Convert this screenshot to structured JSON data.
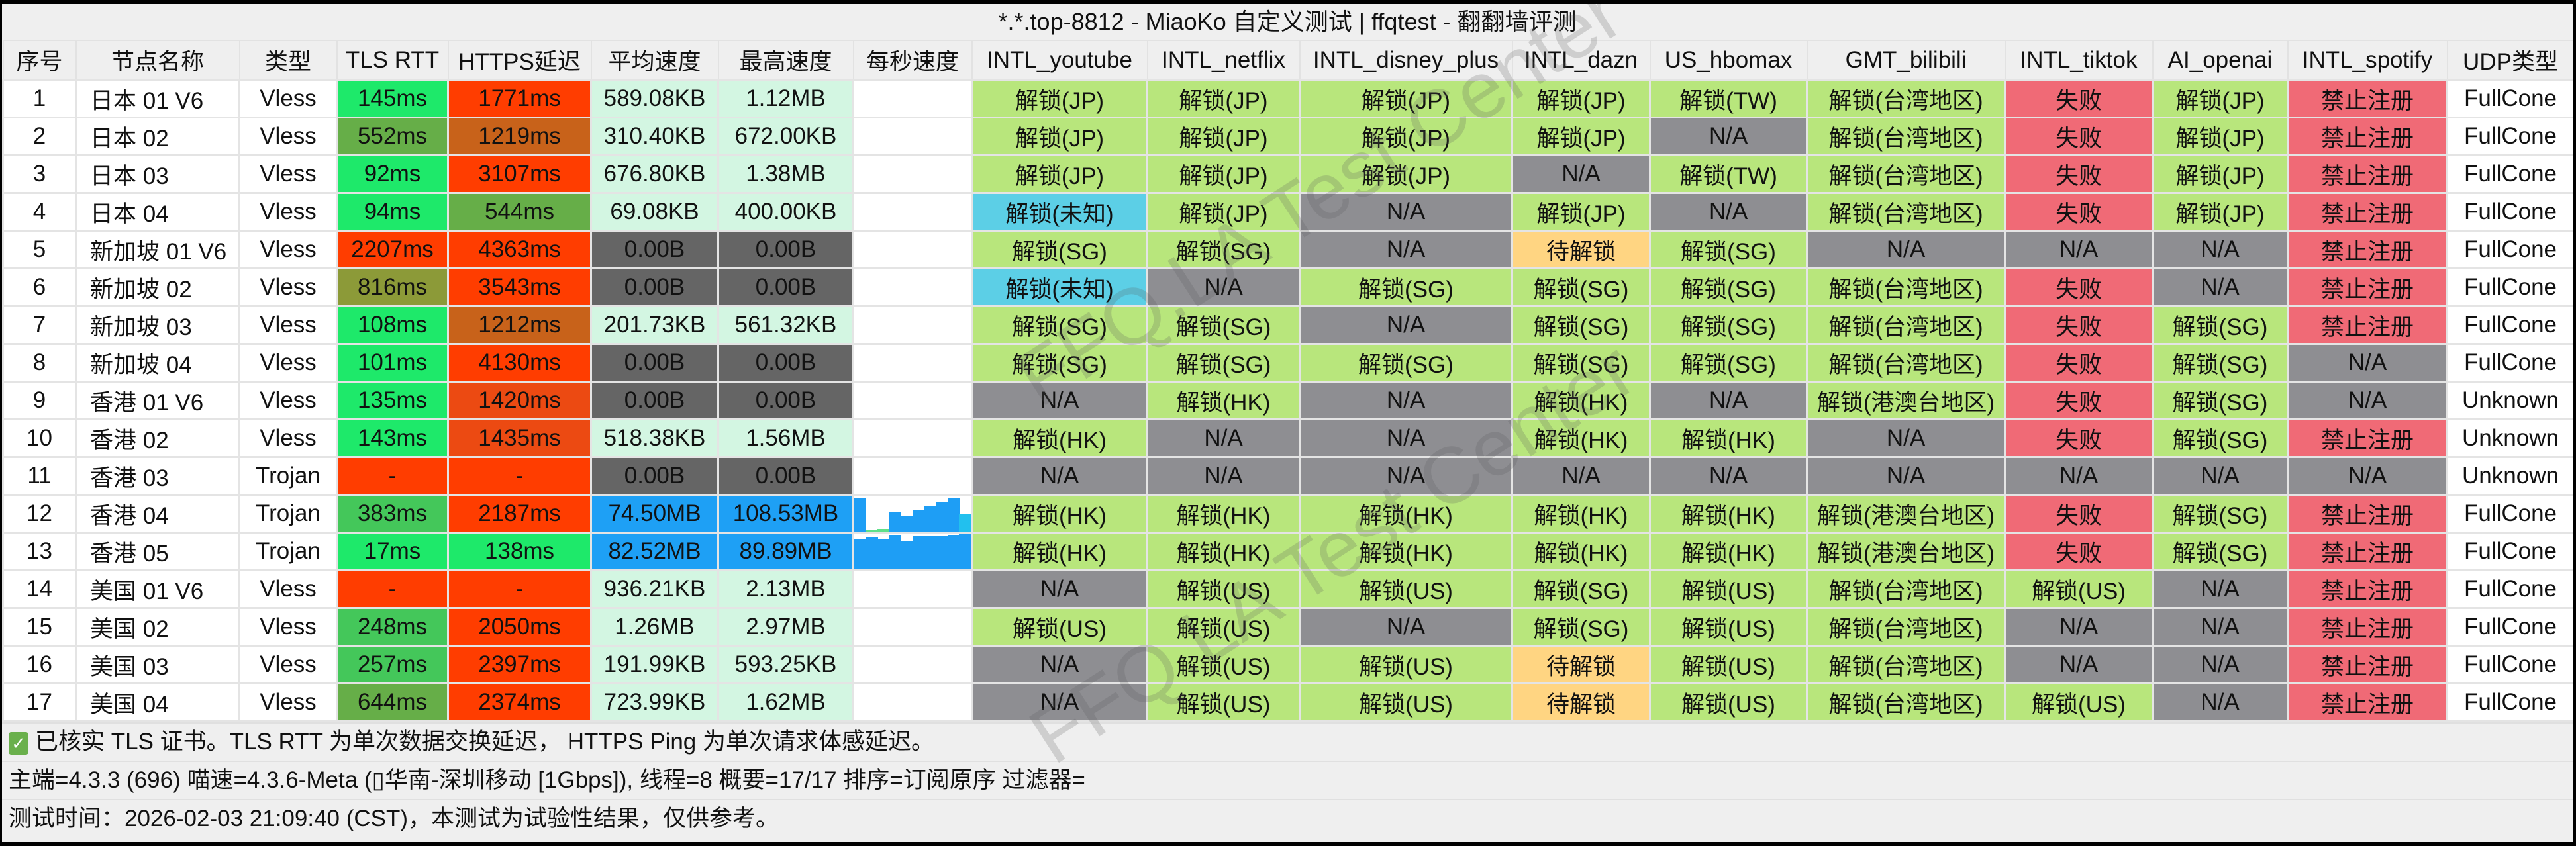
{
  "title": "*.*.top-8812 - MiaoKo 自定义测试 | ffqtest - 翻翻墙评测",
  "watermark": "FFQ.LA Test Center",
  "colors": {
    "w": "#ffffff",
    "g1": "#1ee96a",
    "g2": "#66ae48",
    "g3": "#44c75a",
    "ol": "#8c9a38",
    "rd": "#ff3d00",
    "br": "#c8621a",
    "r2": "#ec4a12",
    "mint": "#d3f6e2",
    "dg": "#656565",
    "bl": "#1ea0f5",
    "ok": "#b8e67c",
    "na": "#8e8e92",
    "fail": "#f06a76",
    "cy": "#5ccfe6",
    "wait": "#ffd582",
    "spark": "#1e9ef5",
    "spark_alt": "#22c0ee",
    "spark_low": "#5fe08a"
  },
  "columns": [
    "序号",
    "节点名称",
    "类型",
    "TLS RTT",
    "HTTPS延迟",
    "平均速度",
    "最高速度",
    "每秒速度",
    "INTL_youtube",
    "INTL_netflix",
    "INTL_disney_plus",
    "INTL_dazn",
    "US_hbomax",
    "GMT_bilibili",
    "INTL_tiktok",
    "AI_openai",
    "INTL_spotify",
    "UDP类型"
  ],
  "rows": [
    {
      "id": "1",
      "name": "日本 01 V6",
      "type": "Vless",
      "tls": [
        "145ms",
        "g1"
      ],
      "https": [
        "1771ms",
        "rd"
      ],
      "avg": [
        "589.08KB",
        "mint"
      ],
      "max": [
        "1.12MB",
        "mint"
      ],
      "spark": [],
      "svc": [
        [
          "解锁(JP)",
          "ok"
        ],
        [
          "解锁(JP)",
          "ok"
        ],
        [
          "解锁(JP)",
          "ok"
        ],
        [
          "解锁(JP)",
          "ok"
        ],
        [
          "解锁(TW)",
          "ok"
        ],
        [
          "解锁(台湾地区)",
          "ok"
        ],
        [
          "失败",
          "fail"
        ],
        [
          "解锁(JP)",
          "ok"
        ],
        [
          "禁止注册",
          "fail"
        ]
      ],
      "udp": "FullCone"
    },
    {
      "id": "2",
      "name": "日本 02",
      "type": "Vless",
      "tls": [
        "552ms",
        "g2"
      ],
      "https": [
        "1219ms",
        "br"
      ],
      "avg": [
        "310.40KB",
        "mint"
      ],
      "max": [
        "672.00KB",
        "mint"
      ],
      "spark": [],
      "svc": [
        [
          "解锁(JP)",
          "ok"
        ],
        [
          "解锁(JP)",
          "ok"
        ],
        [
          "解锁(JP)",
          "ok"
        ],
        [
          "解锁(JP)",
          "ok"
        ],
        [
          "N/A",
          "na"
        ],
        [
          "解锁(台湾地区)",
          "ok"
        ],
        [
          "失败",
          "fail"
        ],
        [
          "解锁(JP)",
          "ok"
        ],
        [
          "禁止注册",
          "fail"
        ]
      ],
      "udp": "FullCone"
    },
    {
      "id": "3",
      "name": "日本 03",
      "type": "Vless",
      "tls": [
        "92ms",
        "g1"
      ],
      "https": [
        "3107ms",
        "rd"
      ],
      "avg": [
        "676.80KB",
        "mint"
      ],
      "max": [
        "1.38MB",
        "mint"
      ],
      "spark": [],
      "svc": [
        [
          "解锁(JP)",
          "ok"
        ],
        [
          "解锁(JP)",
          "ok"
        ],
        [
          "解锁(JP)",
          "ok"
        ],
        [
          "N/A",
          "na"
        ],
        [
          "解锁(TW)",
          "ok"
        ],
        [
          "解锁(台湾地区)",
          "ok"
        ],
        [
          "失败",
          "fail"
        ],
        [
          "解锁(JP)",
          "ok"
        ],
        [
          "禁止注册",
          "fail"
        ]
      ],
      "udp": "FullCone"
    },
    {
      "id": "4",
      "name": "日本 04",
      "type": "Vless",
      "tls": [
        "94ms",
        "g1"
      ],
      "https": [
        "544ms",
        "g2"
      ],
      "avg": [
        "69.08KB",
        "mint"
      ],
      "max": [
        "400.00KB",
        "mint"
      ],
      "spark": [],
      "svc": [
        [
          "解锁(未知)",
          "cy"
        ],
        [
          "解锁(JP)",
          "ok"
        ],
        [
          "N/A",
          "na"
        ],
        [
          "解锁(JP)",
          "ok"
        ],
        [
          "N/A",
          "na"
        ],
        [
          "解锁(台湾地区)",
          "ok"
        ],
        [
          "失败",
          "fail"
        ],
        [
          "解锁(JP)",
          "ok"
        ],
        [
          "禁止注册",
          "fail"
        ]
      ],
      "udp": "FullCone"
    },
    {
      "id": "5",
      "name": "新加坡 01 V6",
      "type": "Vless",
      "tls": [
        "2207ms",
        "rd"
      ],
      "https": [
        "4363ms",
        "rd"
      ],
      "avg": [
        "0.00B",
        "dg"
      ],
      "max": [
        "0.00B",
        "dg"
      ],
      "spark": [],
      "svc": [
        [
          "解锁(SG)",
          "ok"
        ],
        [
          "解锁(SG)",
          "ok"
        ],
        [
          "N/A",
          "na"
        ],
        [
          "待解锁",
          "wait"
        ],
        [
          "解锁(SG)",
          "ok"
        ],
        [
          "N/A",
          "na"
        ],
        [
          "N/A",
          "na"
        ],
        [
          "N/A",
          "na"
        ],
        [
          "禁止注册",
          "fail"
        ]
      ],
      "udp": "FullCone"
    },
    {
      "id": "6",
      "name": "新加坡 02",
      "type": "Vless",
      "tls": [
        "816ms",
        "ol"
      ],
      "https": [
        "3543ms",
        "rd"
      ],
      "avg": [
        "0.00B",
        "dg"
      ],
      "max": [
        "0.00B",
        "dg"
      ],
      "spark": [],
      "svc": [
        [
          "解锁(未知)",
          "cy"
        ],
        [
          "N/A",
          "na"
        ],
        [
          "解锁(SG)",
          "ok"
        ],
        [
          "解锁(SG)",
          "ok"
        ],
        [
          "解锁(SG)",
          "ok"
        ],
        [
          "解锁(台湾地区)",
          "ok"
        ],
        [
          "失败",
          "fail"
        ],
        [
          "N/A",
          "na"
        ],
        [
          "禁止注册",
          "fail"
        ]
      ],
      "udp": "FullCone"
    },
    {
      "id": "7",
      "name": "新加坡 03",
      "type": "Vless",
      "tls": [
        "108ms",
        "g1"
      ],
      "https": [
        "1212ms",
        "br"
      ],
      "avg": [
        "201.73KB",
        "mint"
      ],
      "max": [
        "561.32KB",
        "mint"
      ],
      "spark": [],
      "svc": [
        [
          "解锁(SG)",
          "ok"
        ],
        [
          "解锁(SG)",
          "ok"
        ],
        [
          "N/A",
          "na"
        ],
        [
          "解锁(SG)",
          "ok"
        ],
        [
          "解锁(SG)",
          "ok"
        ],
        [
          "解锁(台湾地区)",
          "ok"
        ],
        [
          "失败",
          "fail"
        ],
        [
          "解锁(SG)",
          "ok"
        ],
        [
          "禁止注册",
          "fail"
        ]
      ],
      "udp": "FullCone"
    },
    {
      "id": "8",
      "name": "新加坡 04",
      "type": "Vless",
      "tls": [
        "101ms",
        "g1"
      ],
      "https": [
        "4130ms",
        "rd"
      ],
      "avg": [
        "0.00B",
        "dg"
      ],
      "max": [
        "0.00B",
        "dg"
      ],
      "spark": [],
      "svc": [
        [
          "解锁(SG)",
          "ok"
        ],
        [
          "解锁(SG)",
          "ok"
        ],
        [
          "解锁(SG)",
          "ok"
        ],
        [
          "解锁(SG)",
          "ok"
        ],
        [
          "解锁(SG)",
          "ok"
        ],
        [
          "解锁(台湾地区)",
          "ok"
        ],
        [
          "失败",
          "fail"
        ],
        [
          "解锁(SG)",
          "ok"
        ],
        [
          "N/A",
          "na"
        ]
      ],
      "udp": "FullCone"
    },
    {
      "id": "9",
      "name": "香港 01 V6",
      "type": "Vless",
      "tls": [
        "135ms",
        "g1"
      ],
      "https": [
        "1420ms",
        "r2"
      ],
      "avg": [
        "0.00B",
        "dg"
      ],
      "max": [
        "0.00B",
        "dg"
      ],
      "spark": [],
      "svc": [
        [
          "N/A",
          "na"
        ],
        [
          "解锁(HK)",
          "ok"
        ],
        [
          "N/A",
          "na"
        ],
        [
          "解锁(HK)",
          "ok"
        ],
        [
          "N/A",
          "na"
        ],
        [
          "解锁(港澳台地区)",
          "ok"
        ],
        [
          "失败",
          "fail"
        ],
        [
          "解锁(SG)",
          "ok"
        ],
        [
          "N/A",
          "na"
        ]
      ],
      "udp": "Unknown"
    },
    {
      "id": "10",
      "name": "香港 02",
      "type": "Vless",
      "tls": [
        "143ms",
        "g1"
      ],
      "https": [
        "1435ms",
        "r2"
      ],
      "avg": [
        "518.38KB",
        "mint"
      ],
      "max": [
        "1.56MB",
        "mint"
      ],
      "spark": [],
      "svc": [
        [
          "解锁(HK)",
          "ok"
        ],
        [
          "N/A",
          "na"
        ],
        [
          "N/A",
          "na"
        ],
        [
          "解锁(HK)",
          "ok"
        ],
        [
          "解锁(HK)",
          "ok"
        ],
        [
          "N/A",
          "na"
        ],
        [
          "失败",
          "fail"
        ],
        [
          "解锁(SG)",
          "ok"
        ],
        [
          "禁止注册",
          "fail"
        ]
      ],
      "udp": "Unknown"
    },
    {
      "id": "11",
      "name": "香港 03",
      "type": "Trojan",
      "tls": [
        "-",
        "rd"
      ],
      "https": [
        "-",
        "rd"
      ],
      "avg": [
        "0.00B",
        "dg"
      ],
      "max": [
        "0.00B",
        "dg"
      ],
      "spark": [],
      "svc": [
        [
          "N/A",
          "na"
        ],
        [
          "N/A",
          "na"
        ],
        [
          "N/A",
          "na"
        ],
        [
          "N/A",
          "na"
        ],
        [
          "N/A",
          "na"
        ],
        [
          "N/A",
          "na"
        ],
        [
          "N/A",
          "na"
        ],
        [
          "N/A",
          "na"
        ],
        [
          "N/A",
          "na"
        ]
      ],
      "udp": "Unknown"
    },
    {
      "id": "12",
      "name": "香港 04",
      "type": "Trojan",
      "tls": [
        "383ms",
        "g3"
      ],
      "https": [
        "2187ms",
        "rd"
      ],
      "avg": [
        "74.50MB",
        "bl"
      ],
      "max": [
        "108.53MB",
        "bl"
      ],
      "spark": [
        0.95,
        0.02,
        0.08,
        0.55,
        0.45,
        0.6,
        0.72,
        0.82,
        0.95,
        0.5
      ],
      "svc": [
        [
          "解锁(HK)",
          "ok"
        ],
        [
          "解锁(HK)",
          "ok"
        ],
        [
          "解锁(HK)",
          "ok"
        ],
        [
          "解锁(HK)",
          "ok"
        ],
        [
          "解锁(HK)",
          "ok"
        ],
        [
          "解锁(港澳台地区)",
          "ok"
        ],
        [
          "失败",
          "fail"
        ],
        [
          "解锁(SG)",
          "ok"
        ],
        [
          "禁止注册",
          "fail"
        ]
      ],
      "udp": "FullCone"
    },
    {
      "id": "13",
      "name": "香港 05",
      "type": "Trojan",
      "tls": [
        "17ms",
        "g1"
      ],
      "https": [
        "138ms",
        "g1"
      ],
      "avg": [
        "82.52MB",
        "bl"
      ],
      "max": [
        "89.89MB",
        "bl"
      ],
      "spark": [
        0.86,
        0.9,
        0.86,
        0.97,
        0.78,
        0.92,
        0.93,
        0.95,
        0.97,
        0.99
      ],
      "svc": [
        [
          "解锁(HK)",
          "ok"
        ],
        [
          "解锁(HK)",
          "ok"
        ],
        [
          "解锁(HK)",
          "ok"
        ],
        [
          "解锁(HK)",
          "ok"
        ],
        [
          "解锁(HK)",
          "ok"
        ],
        [
          "解锁(港澳台地区)",
          "ok"
        ],
        [
          "失败",
          "fail"
        ],
        [
          "解锁(SG)",
          "ok"
        ],
        [
          "禁止注册",
          "fail"
        ]
      ],
      "udp": "FullCone"
    },
    {
      "id": "14",
      "name": "美国 01 V6",
      "type": "Vless",
      "tls": [
        "-",
        "rd"
      ],
      "https": [
        "-",
        "rd"
      ],
      "avg": [
        "936.21KB",
        "mint"
      ],
      "max": [
        "2.13MB",
        "mint"
      ],
      "spark": [],
      "svc": [
        [
          "N/A",
          "na"
        ],
        [
          "解锁(US)",
          "ok"
        ],
        [
          "解锁(US)",
          "ok"
        ],
        [
          "解锁(SG)",
          "ok"
        ],
        [
          "解锁(US)",
          "ok"
        ],
        [
          "解锁(台湾地区)",
          "ok"
        ],
        [
          "解锁(US)",
          "ok"
        ],
        [
          "N/A",
          "na"
        ],
        [
          "禁止注册",
          "fail"
        ]
      ],
      "udp": "FullCone"
    },
    {
      "id": "15",
      "name": "美国 02",
      "type": "Vless",
      "tls": [
        "248ms",
        "g3"
      ],
      "https": [
        "2050ms",
        "rd"
      ],
      "avg": [
        "1.26MB",
        "mint"
      ],
      "max": [
        "2.97MB",
        "mint"
      ],
      "spark": [],
      "svc": [
        [
          "解锁(US)",
          "ok"
        ],
        [
          "解锁(US)",
          "ok"
        ],
        [
          "N/A",
          "na"
        ],
        [
          "解锁(SG)",
          "ok"
        ],
        [
          "解锁(US)",
          "ok"
        ],
        [
          "解锁(台湾地区)",
          "ok"
        ],
        [
          "N/A",
          "na"
        ],
        [
          "N/A",
          "na"
        ],
        [
          "禁止注册",
          "fail"
        ]
      ],
      "udp": "FullCone"
    },
    {
      "id": "16",
      "name": "美国 03",
      "type": "Vless",
      "tls": [
        "257ms",
        "g3"
      ],
      "https": [
        "2397ms",
        "rd"
      ],
      "avg": [
        "191.99KB",
        "mint"
      ],
      "max": [
        "593.25KB",
        "mint"
      ],
      "spark": [],
      "svc": [
        [
          "N/A",
          "na"
        ],
        [
          "解锁(US)",
          "ok"
        ],
        [
          "解锁(US)",
          "ok"
        ],
        [
          "待解锁",
          "wait"
        ],
        [
          "解锁(US)",
          "ok"
        ],
        [
          "解锁(台湾地区)",
          "ok"
        ],
        [
          "N/A",
          "na"
        ],
        [
          "N/A",
          "na"
        ],
        [
          "禁止注册",
          "fail"
        ]
      ],
      "udp": "FullCone"
    },
    {
      "id": "17",
      "name": "美国 04",
      "type": "Vless",
      "tls": [
        "644ms",
        "g2"
      ],
      "https": [
        "2374ms",
        "rd"
      ],
      "avg": [
        "723.99KB",
        "mint"
      ],
      "max": [
        "1.62MB",
        "mint"
      ],
      "spark": [],
      "svc": [
        [
          "N/A",
          "na"
        ],
        [
          "解锁(US)",
          "ok"
        ],
        [
          "解锁(US)",
          "ok"
        ],
        [
          "待解锁",
          "wait"
        ],
        [
          "解锁(US)",
          "ok"
        ],
        [
          "解锁(台湾地区)",
          "ok"
        ],
        [
          "解锁(US)",
          "ok"
        ],
        [
          "N/A",
          "na"
        ],
        [
          "禁止注册",
          "fail"
        ]
      ],
      "udp": "FullCone"
    }
  ],
  "footer": {
    "check_icon": "checkbox-checked-icon",
    "note": "已核实 TLS 证书。TLS RTT 为单次数据交换延迟， HTTPS Ping 为单次请求体感延迟。",
    "info": "主端=4.3.3 (696) 喵速=4.3.6-Meta (▯华南-深圳移动 [1Gbps]), 线程=8 概要=17/17 排序=订阅原序 过滤器=",
    "time": "测试时间：2026-02-03 21:09:40 (CST)，本测试为试验性结果，仅供参考。"
  }
}
